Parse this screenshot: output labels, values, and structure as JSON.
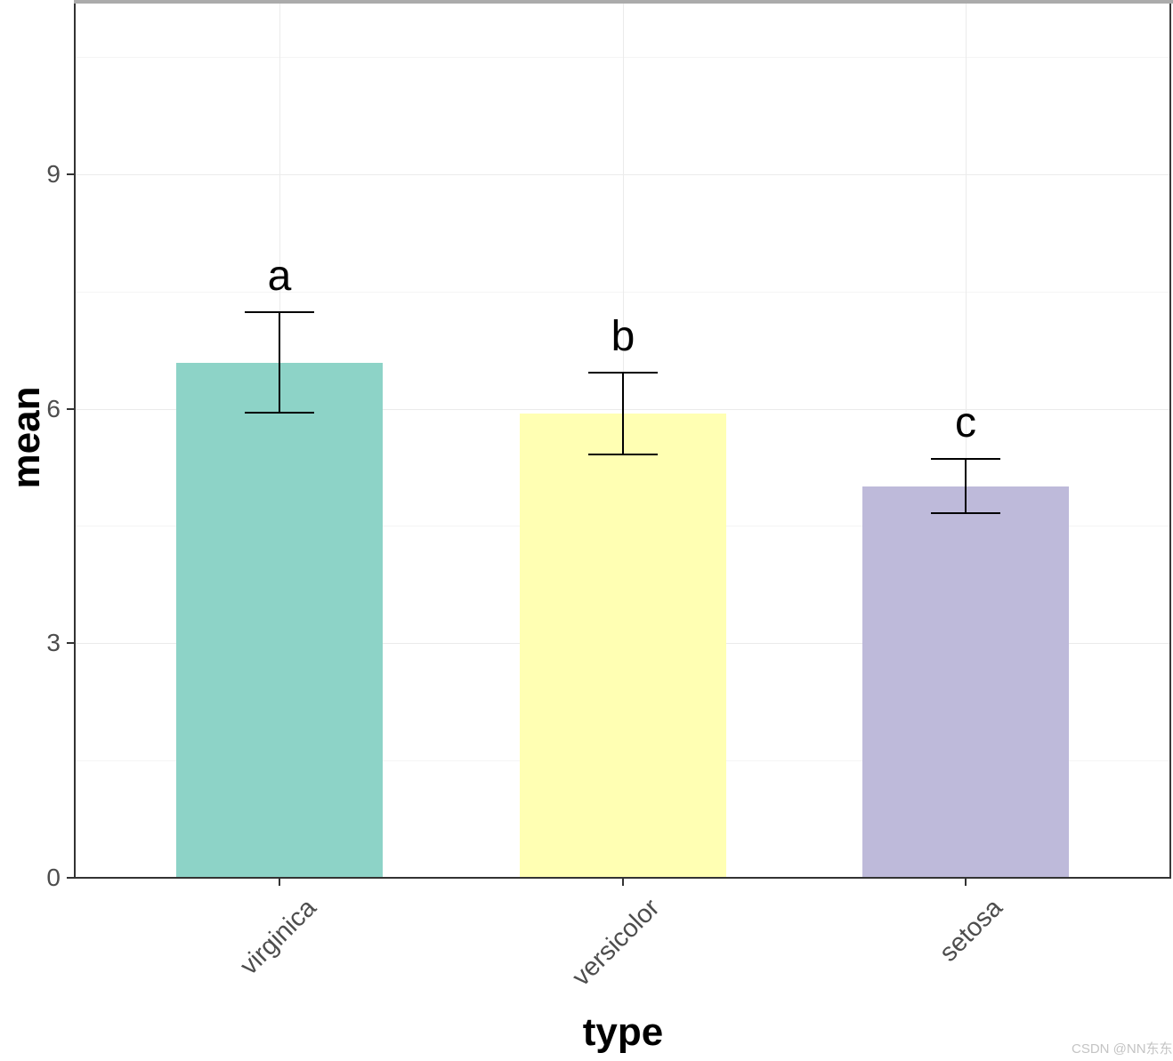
{
  "figure": {
    "watermark": "CSDN @NN东东"
  },
  "chart_data": {
    "type": "bar",
    "title": "",
    "xlabel": "type",
    "ylabel": "mean",
    "categories": [
      "virginica",
      "versicolor",
      "setosa"
    ],
    "series": [
      {
        "name": "mean",
        "values": [
          6.59,
          5.94,
          5.01
        ]
      }
    ],
    "error_bars": {
      "kind": "sd",
      "values": [
        0.64,
        0.52,
        0.35
      ]
    },
    "sig_letters": [
      "a",
      "b",
      "c"
    ],
    "bar_colors": [
      "#8DD3C7",
      "#FFFFB3",
      "#BEBADA"
    ],
    "y_ticks": [
      0,
      3,
      6,
      9
    ],
    "ylim": [
      0,
      11.2
    ],
    "grid": {
      "major_y": [
        3,
        6,
        9
      ],
      "minor_y": [
        1.5,
        4.5,
        7.5,
        10.5
      ],
      "major_x_at_categories": true
    },
    "legend": "none",
    "colors": {
      "grid_major": "#ebebeb",
      "grid_minor": "#f4f4f4",
      "axis_line": "#333333",
      "axis_text": "#4d4d4d",
      "axis_title": "#000000",
      "errorbar": "#000000",
      "background": "#ffffff"
    }
  }
}
